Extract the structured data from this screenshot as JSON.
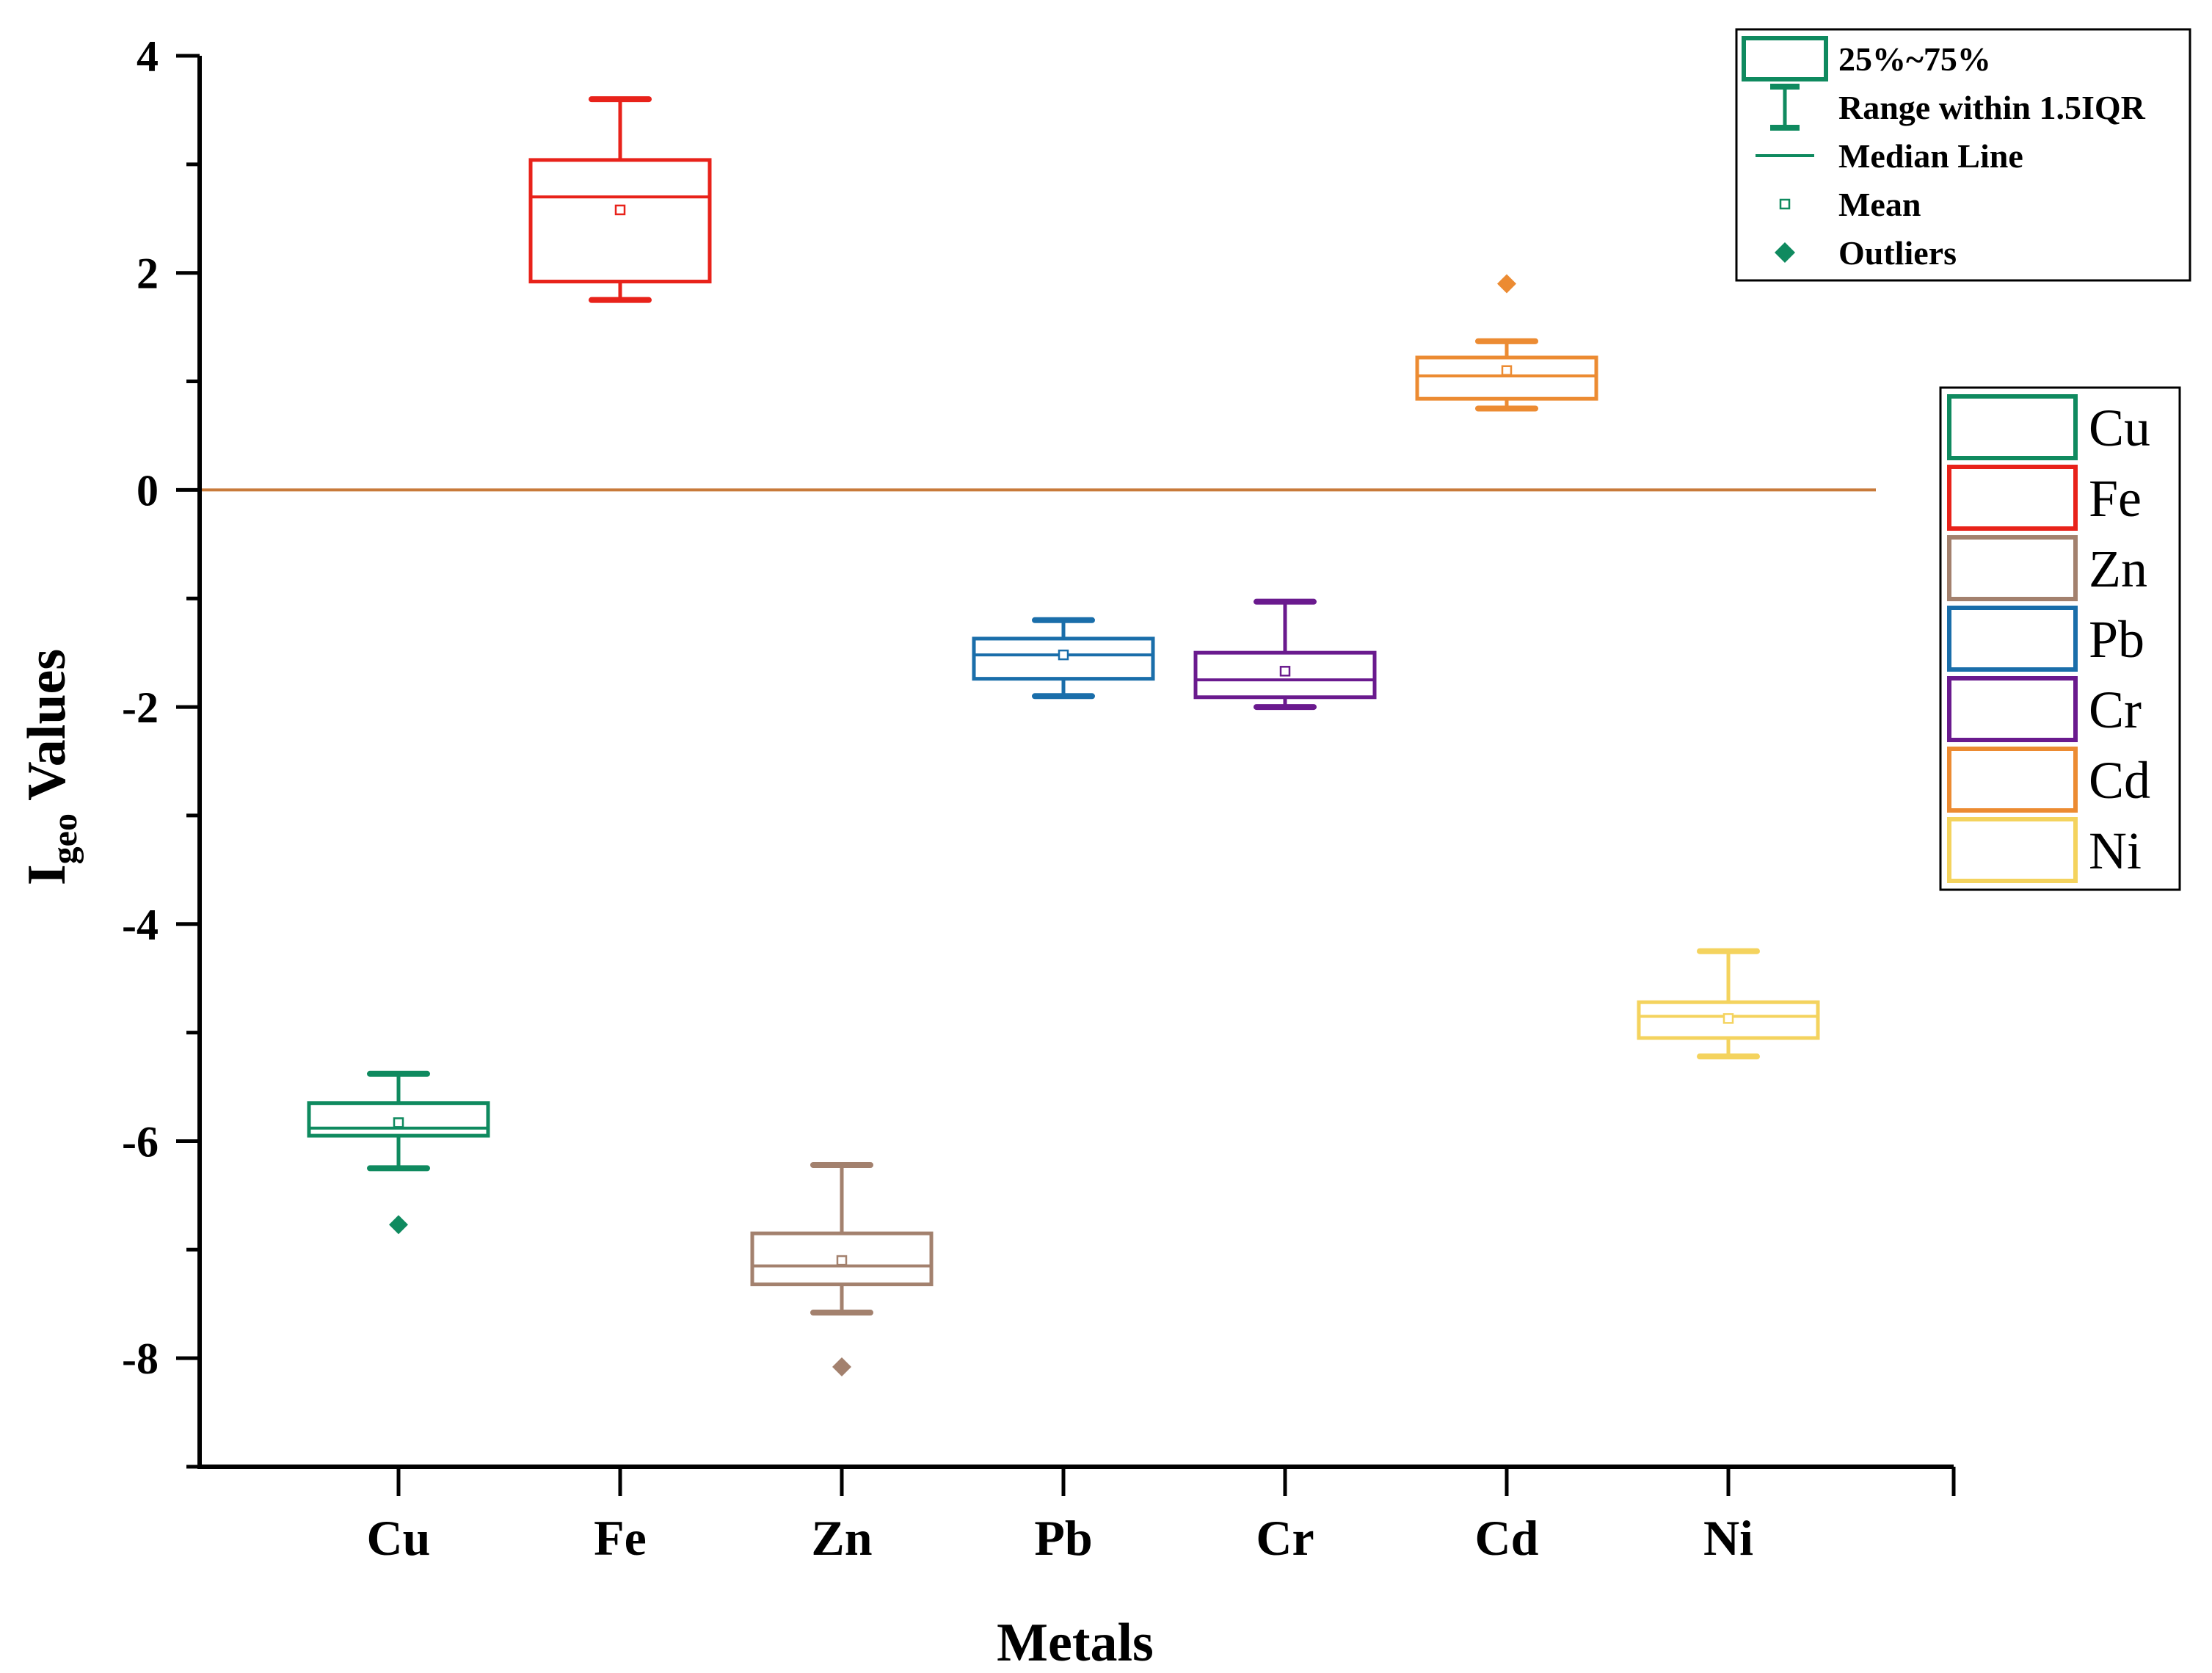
{
  "chart_data": {
    "type": "box",
    "ylabel": {
      "main": "I",
      "sub": "geo",
      "rest": " Values"
    },
    "xlabel": "Metals",
    "ylim": [
      -9,
      4
    ],
    "yticks": [
      {
        "value": 4,
        "label": "4"
      },
      {
        "value": 2,
        "label": "2"
      },
      {
        "value": 0,
        "label": "0"
      },
      {
        "value": -2,
        "label": "-2"
      },
      {
        "value": -4,
        "label": "-4"
      },
      {
        "value": -6,
        "label": "-6"
      },
      {
        "value": -8,
        "label": "-8"
      }
    ],
    "reference_line": {
      "y": 0,
      "color": "#c87a3a"
    },
    "categories": [
      "Cu",
      "Fe",
      "Zn",
      "Pb",
      "Cr",
      "Cd",
      "Ni"
    ],
    "series": [
      {
        "name": "Cu",
        "color": "#0f8a5f",
        "whisker_low": -6.25,
        "q1": -5.95,
        "median": -5.88,
        "q3": -5.65,
        "whisker_high": -5.38,
        "mean": -5.83,
        "outliers": [
          -6.77
        ]
      },
      {
        "name": "Fe",
        "color": "#e8221a",
        "whisker_low": 1.75,
        "q1": 1.92,
        "median": 2.7,
        "q3": 3.04,
        "whisker_high": 3.6,
        "mean": 2.58,
        "outliers": []
      },
      {
        "name": "Zn",
        "color": "#a3816e",
        "whisker_low": -7.58,
        "q1": -7.32,
        "median": -7.15,
        "q3": -6.85,
        "whisker_high": -6.22,
        "mean": -7.1,
        "outliers": [
          -8.08
        ]
      },
      {
        "name": "Pb",
        "color": "#1a6eaa",
        "whisker_low": -1.9,
        "q1": -1.74,
        "median": -1.52,
        "q3": -1.37,
        "whisker_high": -1.2,
        "mean": -1.52,
        "outliers": []
      },
      {
        "name": "Cr",
        "color": "#6a1a8e",
        "whisker_low": -2.0,
        "q1": -1.91,
        "median": -1.75,
        "q3": -1.5,
        "whisker_high": -1.03,
        "mean": -1.67,
        "outliers": []
      },
      {
        "name": "Cd",
        "color": "#ec8b32",
        "whisker_low": 0.75,
        "q1": 0.84,
        "median": 1.05,
        "q3": 1.22,
        "whisker_high": 1.37,
        "mean": 1.1,
        "outliers": [
          1.9
        ]
      },
      {
        "name": "Ni",
        "color": "#f4d35e",
        "whisker_low": -5.22,
        "q1": -5.05,
        "median": -4.85,
        "q3": -4.72,
        "whisker_high": -4.25,
        "mean": -4.87,
        "outliers": []
      }
    ],
    "legend_symbols": {
      "title": [
        {
          "key": "box",
          "label": "25%~75%"
        },
        {
          "key": "range",
          "label": "Range within 1.5IQR"
        },
        {
          "key": "median",
          "label": "Median Line"
        },
        {
          "key": "mean",
          "label": "Mean"
        },
        {
          "key": "outlier",
          "label": "Outliers"
        }
      ],
      "color": "#0f8a5f",
      "placement": "top-right"
    },
    "legend_series_placement": "right"
  }
}
